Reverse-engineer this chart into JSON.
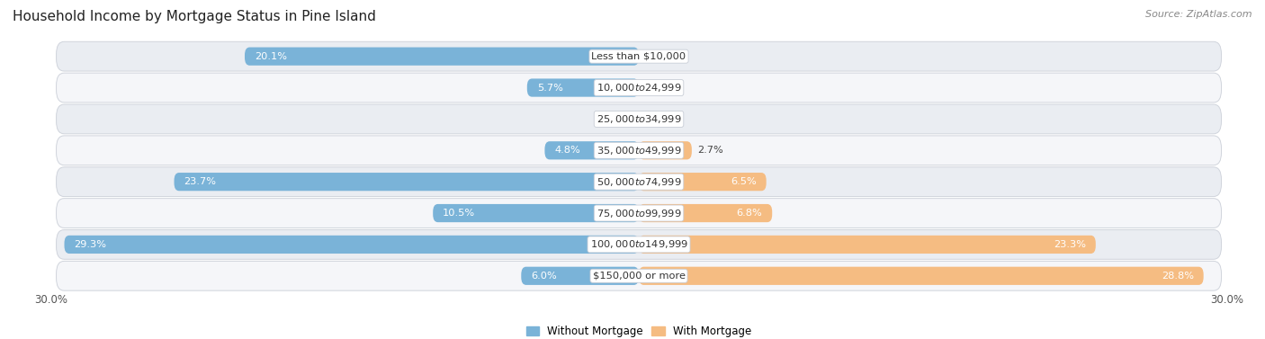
{
  "title": "Household Income by Mortgage Status in Pine Island",
  "source": "Source: ZipAtlas.com",
  "categories": [
    "Less than $10,000",
    "$10,000 to $24,999",
    "$25,000 to $34,999",
    "$35,000 to $49,999",
    "$50,000 to $74,999",
    "$75,000 to $99,999",
    "$100,000 to $149,999",
    "$150,000 or more"
  ],
  "without_mortgage": [
    20.1,
    5.7,
    0.0,
    4.8,
    23.7,
    10.5,
    29.3,
    6.0
  ],
  "with_mortgage": [
    0.0,
    0.0,
    0.0,
    2.7,
    6.5,
    6.8,
    23.3,
    28.8
  ],
  "color_without": "#7ab3d8",
  "color_with": "#f5bc82",
  "bg_row_odd": "#eaedf2",
  "bg_row_even": "#f5f6f9",
  "row_border": "#d0d4dc",
  "xlim": 30.0,
  "title_fontsize": 11,
  "label_fontsize": 8.2,
  "tick_fontsize": 8.5,
  "source_fontsize": 8,
  "legend_fontsize": 8.5,
  "bar_height": 0.58,
  "fig_bg": "#ffffff",
  "inside_label_threshold": 4.5
}
